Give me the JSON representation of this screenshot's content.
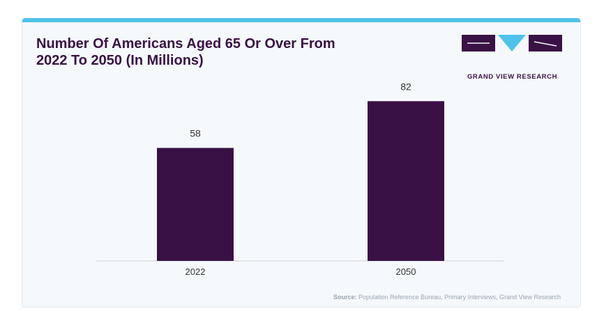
{
  "colors": {
    "accent_top": "#4ec3ea",
    "bar": "#3a1145",
    "title": "#3a1145",
    "logo_blue": "#4ec3ea"
  },
  "logo": {
    "icon": "grand-view-research-logo",
    "text": "GRAND VIEW RESEARCH"
  },
  "source": {
    "label": "Source:",
    "text": "Population Reference Bureau, Primary Interviews, Grand View Research"
  },
  "chart_data": {
    "type": "bar",
    "title": "Number Of Americans Aged 65 Or Over From 2022 To 2050 (In Millions)",
    "categories": [
      "2022",
      "2050"
    ],
    "values": [
      58,
      82
    ],
    "data_labels": [
      "58",
      "82"
    ],
    "xlabel": "",
    "ylabel": "",
    "ylim": [
      0,
      100
    ],
    "grid": false,
    "legend": "none"
  }
}
